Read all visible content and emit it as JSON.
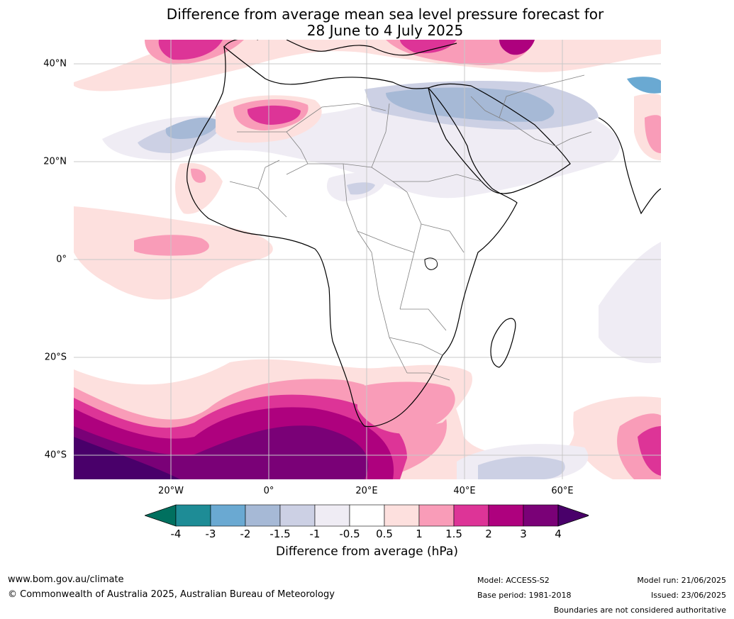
{
  "title": {
    "line1": "Difference from average mean sea level pressure forecast for",
    "line2": "28 June to 4 July 2025"
  },
  "map": {
    "lat_labels": [
      "40°N",
      "20°N",
      "0°",
      "20°S",
      "40°S"
    ],
    "lon_labels": [
      "20°W",
      "0°",
      "20°E",
      "40°E",
      "60°E"
    ],
    "background": "#ffffff",
    "coast_color": "#000000",
    "border_color": "#808080",
    "grid_color": "#c8c8c8"
  },
  "colorbar": {
    "ticks": [
      "-4",
      "-3",
      "-2",
      "-1.5",
      "-1",
      "-0.5",
      "0.5",
      "1",
      "1.5",
      "2",
      "3",
      "4"
    ],
    "colors": [
      "#00705f",
      "#1e8c96",
      "#6aa9d2",
      "#a6b9d6",
      "#ccd0e4",
      "#efecf4",
      "#ffffff",
      "#fde0de",
      "#f99cb8",
      "#dd3497",
      "#ae017e",
      "#7a0177",
      "#49006a"
    ],
    "label": "Difference from average (hPa)"
  },
  "footer": {
    "website": "www.bom.gov.au/climate",
    "copyright": "© Commonwealth of Australia 2025, Australian Bureau of Meteorology",
    "model": "Model: ACCESS-S2",
    "base_period": "Base period: 1981-2018",
    "model_run": "Model run: 21/06/2025",
    "issued": "Issued: 23/06/2025",
    "disclaimer": "Boundaries are not considered authoritative"
  }
}
